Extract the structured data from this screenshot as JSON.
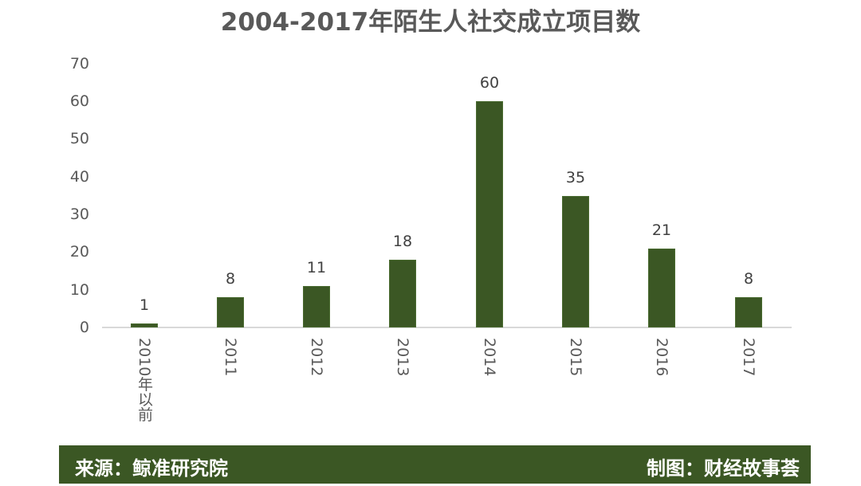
{
  "chart_data": {
    "type": "bar",
    "title": "2004-2017年陌生人社交成立项目数",
    "xlabel": "",
    "ylabel": "",
    "ylim": [
      0,
      70
    ],
    "yticks": [
      "0",
      "10",
      "20",
      "30",
      "40",
      "50",
      "60",
      "70"
    ],
    "categories": [
      "2010年以前",
      "2011",
      "2012",
      "2013",
      "2014",
      "2015",
      "2016",
      "2017"
    ],
    "values": [
      1,
      8,
      11,
      18,
      60,
      35,
      21,
      8
    ],
    "data_labels": [
      "1",
      "8",
      "11",
      "18",
      "60",
      "35",
      "21",
      "8"
    ],
    "grid": false,
    "legend": null,
    "bar_color": "#3b5724"
  },
  "footer": {
    "source": "来源：鲸准研究院",
    "credit": "制图：财经故事荟",
    "background": "#3b5724"
  }
}
